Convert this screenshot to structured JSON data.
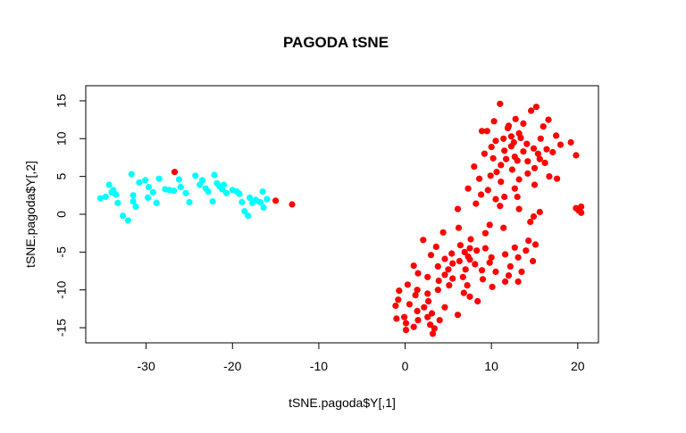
{
  "chart_data": {
    "type": "scatter",
    "title": "PAGODA tSNE",
    "xlabel": "tSNE.pagoda$Y[,1]",
    "ylabel": "tSNE.pagoda$Y[,2]",
    "xlim": [
      -37,
      22.4
    ],
    "ylim": [
      -17,
      17
    ],
    "x_ticks": [
      -30,
      -20,
      -10,
      0,
      10,
      20
    ],
    "y_ticks": [
      -15,
      -10,
      -5,
      0,
      5,
      10,
      15
    ],
    "x_tick_labels": [
      "-30",
      "-20",
      "-10",
      "0",
      "10",
      "20"
    ],
    "y_tick_labels": [
      "-15",
      "-10",
      "-5",
      "0",
      "5",
      "10",
      "15"
    ],
    "grid": false,
    "legend": "none",
    "series": [
      {
        "color": "#00ffff",
        "points": [
          [
            -35.3,
            2.1
          ],
          [
            -34.7,
            2.3
          ],
          [
            -34.3,
            3.9
          ],
          [
            -34.0,
            2.9
          ],
          [
            -33.8,
            3.2
          ],
          [
            -33.5,
            2.6
          ],
          [
            -33.3,
            1.5
          ],
          [
            -32.7,
            -0.2
          ],
          [
            -32.1,
            -0.8
          ],
          [
            -31.7,
            5.3
          ],
          [
            -31.5,
            2.5
          ],
          [
            -31.5,
            1.7
          ],
          [
            -31.2,
            1.0
          ],
          [
            -30.8,
            4.2
          ],
          [
            -30.1,
            4.5
          ],
          [
            -29.8,
            2.2
          ],
          [
            -29.7,
            3.6
          ],
          [
            -29.2,
            2.9
          ],
          [
            -28.8,
            1.5
          ],
          [
            -28.5,
            4.7
          ],
          [
            -27.8,
            3.3
          ],
          [
            -27.3,
            3.2
          ],
          [
            -26.8,
            3.1
          ],
          [
            -26.2,
            4.6
          ],
          [
            -26.0,
            3.6
          ],
          [
            -25.4,
            2.8
          ],
          [
            -25.0,
            1.6
          ],
          [
            -24.3,
            5.1
          ],
          [
            -23.8,
            3.9
          ],
          [
            -23.5,
            4.5
          ],
          [
            -23.1,
            3.4
          ],
          [
            -22.8,
            3.0
          ],
          [
            -22.3,
            1.7
          ],
          [
            -22.1,
            5.2
          ],
          [
            -21.8,
            4.1
          ],
          [
            -21.5,
            3.7
          ],
          [
            -21.2,
            3.3
          ],
          [
            -21.0,
            3.9
          ],
          [
            -20.7,
            2.8
          ],
          [
            -20.0,
            3.2
          ],
          [
            -19.5,
            3.0
          ],
          [
            -19.2,
            2.7
          ],
          [
            -18.9,
            1.6
          ],
          [
            -18.6,
            0.4
          ],
          [
            -18.2,
            -0.2
          ],
          [
            -18.0,
            2.2
          ],
          [
            -17.7,
            1.5
          ],
          [
            -17.3,
            1.9
          ],
          [
            -16.8,
            1.6
          ],
          [
            -16.5,
            3.0
          ],
          [
            -16.4,
            0.9
          ],
          [
            -16.0,
            2.0
          ]
        ]
      },
      {
        "color": "#ff0000",
        "points": [
          [
            -26.7,
            5.6
          ],
          [
            -15.0,
            1.8
          ],
          [
            -13.1,
            1.3
          ],
          [
            11.0,
            14.6
          ],
          [
            15.2,
            14.2
          ],
          [
            14.6,
            13.7
          ],
          [
            12.8,
            12.6
          ],
          [
            16.6,
            12.5
          ],
          [
            10.3,
            12.3
          ],
          [
            13.7,
            12.0
          ],
          [
            12.0,
            11.7
          ],
          [
            16.0,
            11.6
          ],
          [
            11.9,
            11.4
          ],
          [
            8.9,
            11.0
          ],
          [
            9.5,
            11.0
          ],
          [
            13.2,
            10.7
          ],
          [
            17.5,
            10.4
          ],
          [
            12.3,
            10.3
          ],
          [
            13.4,
            10.1
          ],
          [
            11.4,
            10.0
          ],
          [
            15.7,
            10.0
          ],
          [
            10.5,
            9.7
          ],
          [
            19.2,
            9.5
          ],
          [
            12.6,
            9.5
          ],
          [
            14.1,
            9.3
          ],
          [
            18.0,
            9.2
          ],
          [
            12.3,
            9.0
          ],
          [
            10.0,
            8.9
          ],
          [
            14.9,
            8.7
          ],
          [
            16.4,
            8.6
          ],
          [
            11.5,
            8.4
          ],
          [
            13.7,
            8.3
          ],
          [
            17.1,
            8.2
          ],
          [
            9.2,
            8.0
          ],
          [
            15.4,
            8.0
          ],
          [
            19.8,
            7.8
          ],
          [
            12.7,
            7.6
          ],
          [
            10.2,
            7.4
          ],
          [
            11.7,
            7.3
          ],
          [
            15.6,
            7.3
          ],
          [
            13.0,
            7.1
          ],
          [
            14.2,
            7.0
          ],
          [
            16.2,
            6.8
          ],
          [
            11.1,
            6.5
          ],
          [
            8.0,
            6.3
          ],
          [
            15.0,
            6.1
          ],
          [
            12.4,
            5.9
          ],
          [
            10.6,
            5.6
          ],
          [
            14.2,
            5.4
          ],
          [
            9.9,
            5.1
          ],
          [
            16.7,
            5.0
          ],
          [
            17.6,
            4.7
          ],
          [
            8.6,
            4.7
          ],
          [
            13.2,
            4.6
          ],
          [
            11.1,
            4.3
          ],
          [
            15.0,
            3.9
          ],
          [
            7.3,
            3.4
          ],
          [
            12.7,
            3.4
          ],
          [
            9.6,
            3.2
          ],
          [
            8.8,
            2.6
          ],
          [
            11.5,
            2.3
          ],
          [
            13.0,
            2.3
          ],
          [
            10.5,
            2.0
          ],
          [
            8.2,
            1.4
          ],
          [
            11.0,
            1.1
          ],
          [
            6.1,
            0.7
          ],
          [
            13.2,
            0.7
          ],
          [
            15.6,
            0.3
          ],
          [
            14.9,
            -0.3
          ],
          [
            19.8,
            0.8
          ],
          [
            20.4,
            1.0
          ],
          [
            20.1,
            0.5
          ],
          [
            20.4,
            0.2
          ],
          [
            14.5,
            -1.0
          ],
          [
            9.8,
            -1.4
          ],
          [
            6.2,
            -1.8
          ],
          [
            11.4,
            -1.8
          ],
          [
            4.4,
            -2.4
          ],
          [
            9.3,
            -2.5
          ],
          [
            2.1,
            -3.4
          ],
          [
            7.6,
            -3.3
          ],
          [
            14.3,
            -3.5
          ],
          [
            6.4,
            -4.1
          ],
          [
            15.1,
            -4.0
          ],
          [
            3.6,
            -4.3
          ],
          [
            7.5,
            -4.5
          ],
          [
            9.3,
            -4.5
          ],
          [
            12.7,
            -4.4
          ],
          [
            8.3,
            -4.8
          ],
          [
            14.0,
            -4.8
          ],
          [
            6.9,
            -5.0
          ],
          [
            5.4,
            -5.2
          ],
          [
            3.0,
            -5.4
          ],
          [
            11.6,
            -5.3
          ],
          [
            7.3,
            -5.6
          ],
          [
            10.0,
            -5.7
          ],
          [
            13.1,
            -5.7
          ],
          [
            4.6,
            -5.9
          ],
          [
            7.5,
            -6.0
          ],
          [
            6.3,
            -6.2
          ],
          [
            14.8,
            -6.2
          ],
          [
            5.5,
            -6.5
          ],
          [
            8.1,
            -6.6
          ],
          [
            9.8,
            -6.4
          ],
          [
            1.0,
            -6.8
          ],
          [
            3.8,
            -6.9
          ],
          [
            12.2,
            -6.9
          ],
          [
            5.0,
            -7.3
          ],
          [
            7.0,
            -7.3
          ],
          [
            8.9,
            -7.4
          ],
          [
            10.5,
            -7.6
          ],
          [
            13.5,
            -7.6
          ],
          [
            1.5,
            -7.8
          ],
          [
            4.6,
            -8.0
          ],
          [
            2.6,
            -8.3
          ],
          [
            12.0,
            -8.1
          ],
          [
            6.7,
            -8.3
          ],
          [
            5.5,
            -8.5
          ],
          [
            9.0,
            -8.6
          ],
          [
            3.9,
            -8.8
          ],
          [
            11.6,
            -8.9
          ],
          [
            13.1,
            -8.9
          ],
          [
            0.3,
            -9.3
          ],
          [
            5.1,
            -9.4
          ],
          [
            7.2,
            -9.4
          ],
          [
            10.1,
            -9.6
          ],
          [
            1.4,
            -10.0
          ],
          [
            3.8,
            -10.0
          ],
          [
            -0.7,
            -10.1
          ],
          [
            6.8,
            -10.4
          ],
          [
            2.6,
            -10.5
          ],
          [
            1.2,
            -10.7
          ],
          [
            7.5,
            -10.9
          ],
          [
            -0.8,
            -11.3
          ],
          [
            2.7,
            -11.5
          ],
          [
            8.4,
            -11.5
          ],
          [
            0.5,
            -11.9
          ],
          [
            -1.1,
            -12.1
          ],
          [
            2.2,
            -12.3
          ],
          [
            4.6,
            -12.3
          ],
          [
            1.4,
            -12.8
          ],
          [
            3.1,
            -13.1
          ],
          [
            6.1,
            -13.3
          ],
          [
            -0.1,
            -13.6
          ],
          [
            -1.0,
            -13.8
          ],
          [
            2.6,
            -13.6
          ],
          [
            1.5,
            -14.0
          ],
          [
            4.0,
            -14.0
          ],
          [
            0.1,
            -14.4
          ],
          [
            2.9,
            -14.6
          ],
          [
            1.0,
            -14.9
          ],
          [
            3.4,
            -15.1
          ],
          [
            0.1,
            -15.3
          ],
          [
            3.2,
            -15.8
          ]
        ]
      }
    ]
  }
}
